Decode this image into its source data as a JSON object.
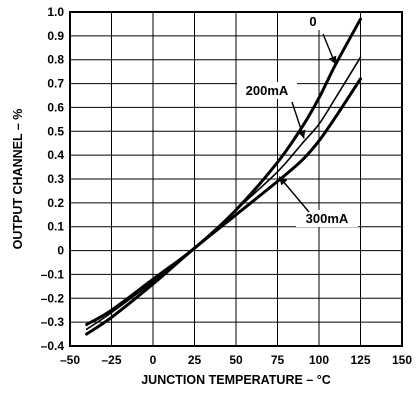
{
  "chart_data": {
    "type": "line",
    "xlabel": "JUNCTION TEMPERATURE – °C",
    "ylabel": "OUTPUT CHANNEL – %",
    "xlim": [
      -50,
      150
    ],
    "ylim": [
      -0.4,
      1.0
    ],
    "xticks": [
      -50,
      -25,
      0,
      25,
      50,
      75,
      100,
      125,
      150
    ],
    "yticks": [
      -0.4,
      -0.3,
      -0.2,
      -0.1,
      0,
      0.1,
      0.2,
      0.3,
      0.4,
      0.5,
      0.6,
      0.7,
      0.8,
      0.9,
      1.0
    ],
    "xtick_labels": [
      "–50",
      "–25",
      "0",
      "25",
      "50",
      "75",
      "100",
      "125",
      "150"
    ],
    "ytick_labels": [
      "–0.4",
      "–0.3",
      "–0.2",
      "–0.1",
      "0",
      "0.1",
      "0.2",
      "0.3",
      "0.4",
      "0.5",
      "0.6",
      "0.7",
      "0.8",
      "0.9",
      "1.0"
    ],
    "grid": true,
    "series": [
      {
        "name": "0",
        "x": [
          -40,
          -25,
          0,
          25,
          50,
          75,
          90,
          100,
          110,
          125
        ],
        "y": [
          -0.31,
          -0.25,
          -0.12,
          0.01,
          0.17,
          0.37,
          0.52,
          0.64,
          0.78,
          0.97
        ],
        "thick": true
      },
      {
        "name": "200mA",
        "x": [
          -40,
          -25,
          0,
          25,
          50,
          75,
          90,
          100,
          110,
          125
        ],
        "y": [
          -0.33,
          -0.26,
          -0.13,
          0.01,
          0.17,
          0.33,
          0.45,
          0.53,
          0.64,
          0.81
        ],
        "thick": false
      },
      {
        "name": "300mA",
        "x": [
          -40,
          -25,
          0,
          25,
          50,
          75,
          90,
          100,
          110,
          125
        ],
        "y": [
          -0.35,
          -0.28,
          -0.14,
          0.01,
          0.15,
          0.29,
          0.38,
          0.46,
          0.56,
          0.72
        ],
        "thick": true
      }
    ],
    "annotations": [
      {
        "text": "0",
        "series": 0
      },
      {
        "text": "200mA",
        "series": 1
      },
      {
        "text": "300mA",
        "series": 2
      }
    ]
  }
}
